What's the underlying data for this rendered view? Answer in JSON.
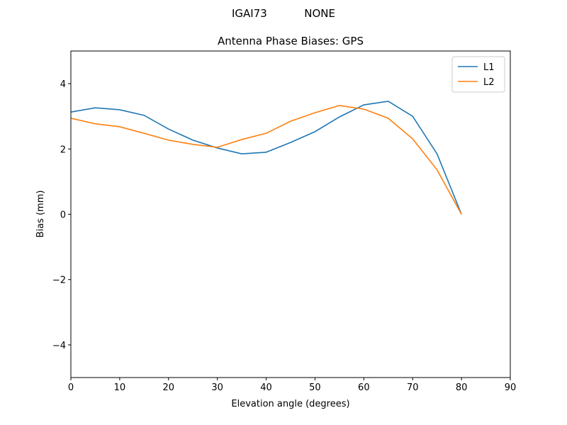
{
  "chart_data": {
    "type": "line",
    "suptitle": "IGAI73           NONE",
    "title": "Antenna Phase Biases: GPS",
    "xlabel": "Elevation angle (degrees)",
    "ylabel": "Bias (mm)",
    "x": [
      0,
      5,
      10,
      15,
      20,
      25,
      30,
      35,
      40,
      45,
      50,
      55,
      60,
      65,
      70,
      75,
      80
    ],
    "series": [
      {
        "name": "L1",
        "color": "#1f77b4",
        "values": [
          3.13,
          3.26,
          3.2,
          3.03,
          2.61,
          2.27,
          2.03,
          1.85,
          1.9,
          2.2,
          2.53,
          2.98,
          3.35,
          3.46,
          3.0,
          1.85,
          0.0
        ]
      },
      {
        "name": "L2",
        "color": "#ff7f0e",
        "values": [
          2.94,
          2.77,
          2.68,
          2.48,
          2.27,
          2.14,
          2.05,
          2.29,
          2.48,
          2.85,
          3.11,
          3.33,
          3.22,
          2.94,
          2.31,
          1.36,
          0.0
        ]
      }
    ],
    "xlim": [
      0,
      90
    ],
    "xticks": [
      0,
      10,
      20,
      30,
      40,
      50,
      60,
      70,
      80,
      90
    ],
    "ylim": [
      -5,
      5
    ],
    "yticks": [
      {
        "value": -4,
        "label": "−4"
      },
      {
        "value": -2,
        "label": "−2"
      },
      0,
      2,
      4
    ],
    "legend": "upper-right"
  }
}
